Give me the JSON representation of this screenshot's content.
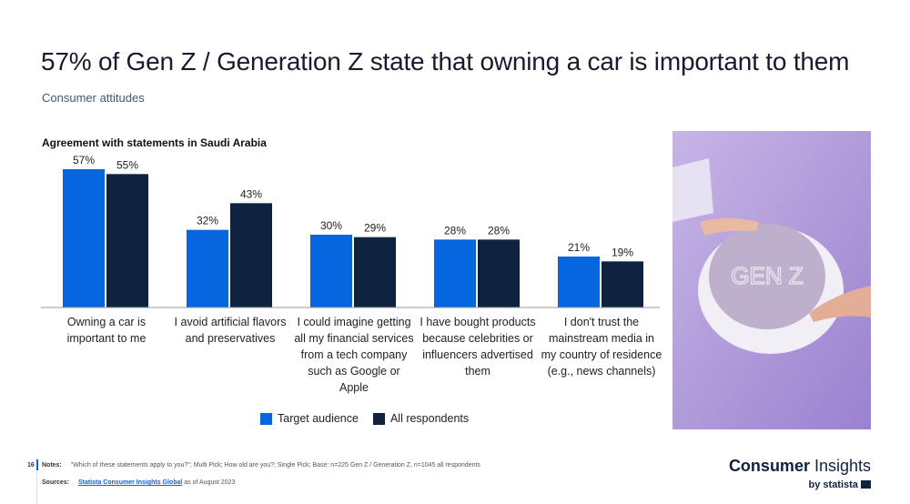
{
  "title": "57% of Gen Z / Generation Z state that owning a car is important to them",
  "subtitle": "Consumer attitudes",
  "chart_data": {
    "type": "bar",
    "title": "Agreement with statements in Saudi Arabia",
    "categories": [
      "Owning a car is important to me",
      "I avoid artificial flavors and preservatives",
      "I could imagine getting all my financial services from a tech company such as Google or Apple",
      "I have bought products because celebrities or influencers advertised them",
      "I don't trust the mainstream media in my country of residence (e.g., news channels)"
    ],
    "series": [
      {
        "name": "Target audience",
        "values": [
          57,
          32,
          30,
          28,
          21
        ],
        "color": "#0666e0"
      },
      {
        "name": "All respondents",
        "values": [
          55,
          43,
          29,
          28,
          19
        ],
        "color": "#0f2341"
      }
    ],
    "unit": "%",
    "ylim": [
      0,
      60
    ],
    "grid": false,
    "legend": "bottom"
  },
  "photo": {
    "lettering": "GEN Z"
  },
  "footer": {
    "page": "16",
    "notes_label": "Notes:",
    "notes": "\"Which of these statements apply to you?\"; Multi Pick; How old are you?; Single Pick; Base: n=225 Gen Z / Generation Z, n=1045 all respondents",
    "sources_label": "Sources:",
    "source_link": "Statista Consumer Insights Global",
    "source_suffix": " as of August 2023"
  },
  "logo": {
    "bold": "Consumer",
    "light": " Insights",
    "by": "by statista"
  }
}
